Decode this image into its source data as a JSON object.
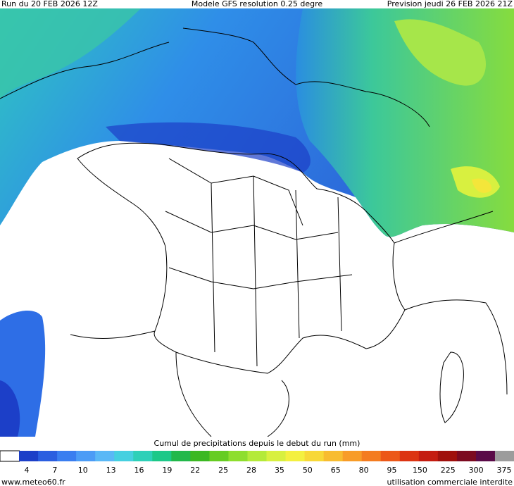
{
  "header": {
    "run": "Run du 20 FEB 2026 12Z",
    "model": "Modele GFS resolution 0.25 degre",
    "forecast": "Prevision jeudi 26 FEB 2026 21Z"
  },
  "legend": {
    "title": "Cumul de precipitations depuis le debut du run (mm)",
    "ticks": [
      "4",
      "7",
      "10",
      "13",
      "16",
      "19",
      "22",
      "25",
      "28",
      "35",
      "50",
      "65",
      "80",
      "95",
      "150",
      "225",
      "300",
      "375"
    ],
    "colors": [
      "#ffffff",
      "#1c3fc8",
      "#2a5ee0",
      "#3a7ef0",
      "#4c9cf6",
      "#5ab8f6",
      "#46d0e0",
      "#2ed0b8",
      "#1cc888",
      "#22b84a",
      "#3cb822",
      "#66cc22",
      "#8ede2e",
      "#b4ea3a",
      "#d8f040",
      "#f4f040",
      "#f8d838",
      "#f8bc30",
      "#f89c28",
      "#f47c20",
      "#ec5818",
      "#dc3412",
      "#c41c10",
      "#a0100c",
      "#7c0a20",
      "#5a0a48",
      "#9c9c9c"
    ]
  },
  "footer": {
    "site": "www.meteo60.fr",
    "notice": "utilisation commerciale interdite"
  }
}
